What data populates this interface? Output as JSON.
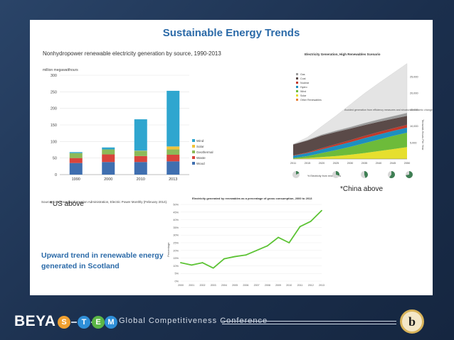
{
  "slide": {
    "title": "Sustainable Energy Trends",
    "us_caption": "*US above",
    "china_caption": "*China above",
    "scotland_text": "Upward trend in renewable energy  generated in Scotland"
  },
  "footer": {
    "brand": "BEYA",
    "stem_letters": [
      "S",
      "T",
      "E",
      "M"
    ],
    "stem_colors": [
      "#f0a030",
      "#2f8fd8",
      "#5bb646",
      "#2f8fd8"
    ],
    "conference": "Global Competitiveness Conference",
    "logo_letter": "b"
  },
  "chart_data": [
    {
      "type": "bar",
      "title": "Nonhydropower renewable electricity generation by source, 1990-2013",
      "ylabel": "million megawatthours",
      "categories": [
        "1990",
        "2000",
        "2010",
        "2013"
      ],
      "ylim": [
        0,
        300
      ],
      "yticks": [
        0,
        50,
        100,
        150,
        200,
        250,
        300
      ],
      "series": [
        {
          "name": "Wood",
          "color": "#3f6fb0",
          "values": [
            35,
            38,
            38,
            40
          ]
        },
        {
          "name": "Waste",
          "color": "#d9443c",
          "values": [
            15,
            23,
            18,
            20
          ]
        },
        {
          "name": "Geothermal",
          "color": "#8cba58",
          "values": [
            15,
            15,
            15,
            16
          ]
        },
        {
          "name": "Solar",
          "color": "#f0c338",
          "values": [
            0,
            0,
            1,
            9
          ]
        },
        {
          "name": "Wind",
          "color": "#2fa6cf",
          "values": [
            3,
            6,
            95,
            168
          ]
        }
      ],
      "legend_order": [
        "Wind",
        "Solar",
        "Geothermal",
        "Waste",
        "Wood"
      ],
      "source": "Source: U.S. Energy Information Administration, Electric Power Monthly (February 2014)."
    },
    {
      "type": "area",
      "title": "Electricity Generation, High Renewables Scenario",
      "ylabel": "Terawatt-Hours Per Year",
      "x": [
        "2011",
        "2015",
        "2020",
        "2025",
        "2030",
        "2035",
        "2040",
        "2045",
        "2050"
      ],
      "yticks": [
        0,
        5000,
        10000,
        15000,
        20000,
        25000
      ],
      "series": [
        {
          "name": "Gas",
          "color": "#9b9b9b"
        },
        {
          "name": "Coal",
          "color": "#5a4a48"
        },
        {
          "name": "Nuclear",
          "color": "#c0392b"
        },
        {
          "name": "Hydro",
          "color": "#1d8fc0"
        },
        {
          "name": "Wind",
          "color": "#6dbb3a"
        },
        {
          "name": "Solar",
          "color": "#e6df2e"
        },
        {
          "name": "Other Renewables",
          "color": "#e8823a"
        }
      ],
      "annotation": "Avoided generation from efficiency measures and structural economic change",
      "pie_label": "% Electricity from renewables"
    },
    {
      "type": "line",
      "title": "Electricity generated by renewables as a percentage of gross consumption, 2000 to 2013",
      "ylabel": "Percentage",
      "x": [
        "2000",
        "2001",
        "2002",
        "2003",
        "2004",
        "2005",
        "2006",
        "2007",
        "2008",
        "2009",
        "2010",
        "2011",
        "2012",
        "2013"
      ],
      "values": [
        12,
        10.5,
        12,
        8.5,
        14.5,
        16,
        17,
        20,
        23,
        28.5,
        25,
        35.5,
        39,
        46
      ],
      "ylim": [
        0,
        50
      ],
      "yticks": [
        0,
        5,
        10,
        15,
        20,
        25,
        30,
        35,
        40,
        45,
        50
      ],
      "color": "#5cc334"
    }
  ]
}
